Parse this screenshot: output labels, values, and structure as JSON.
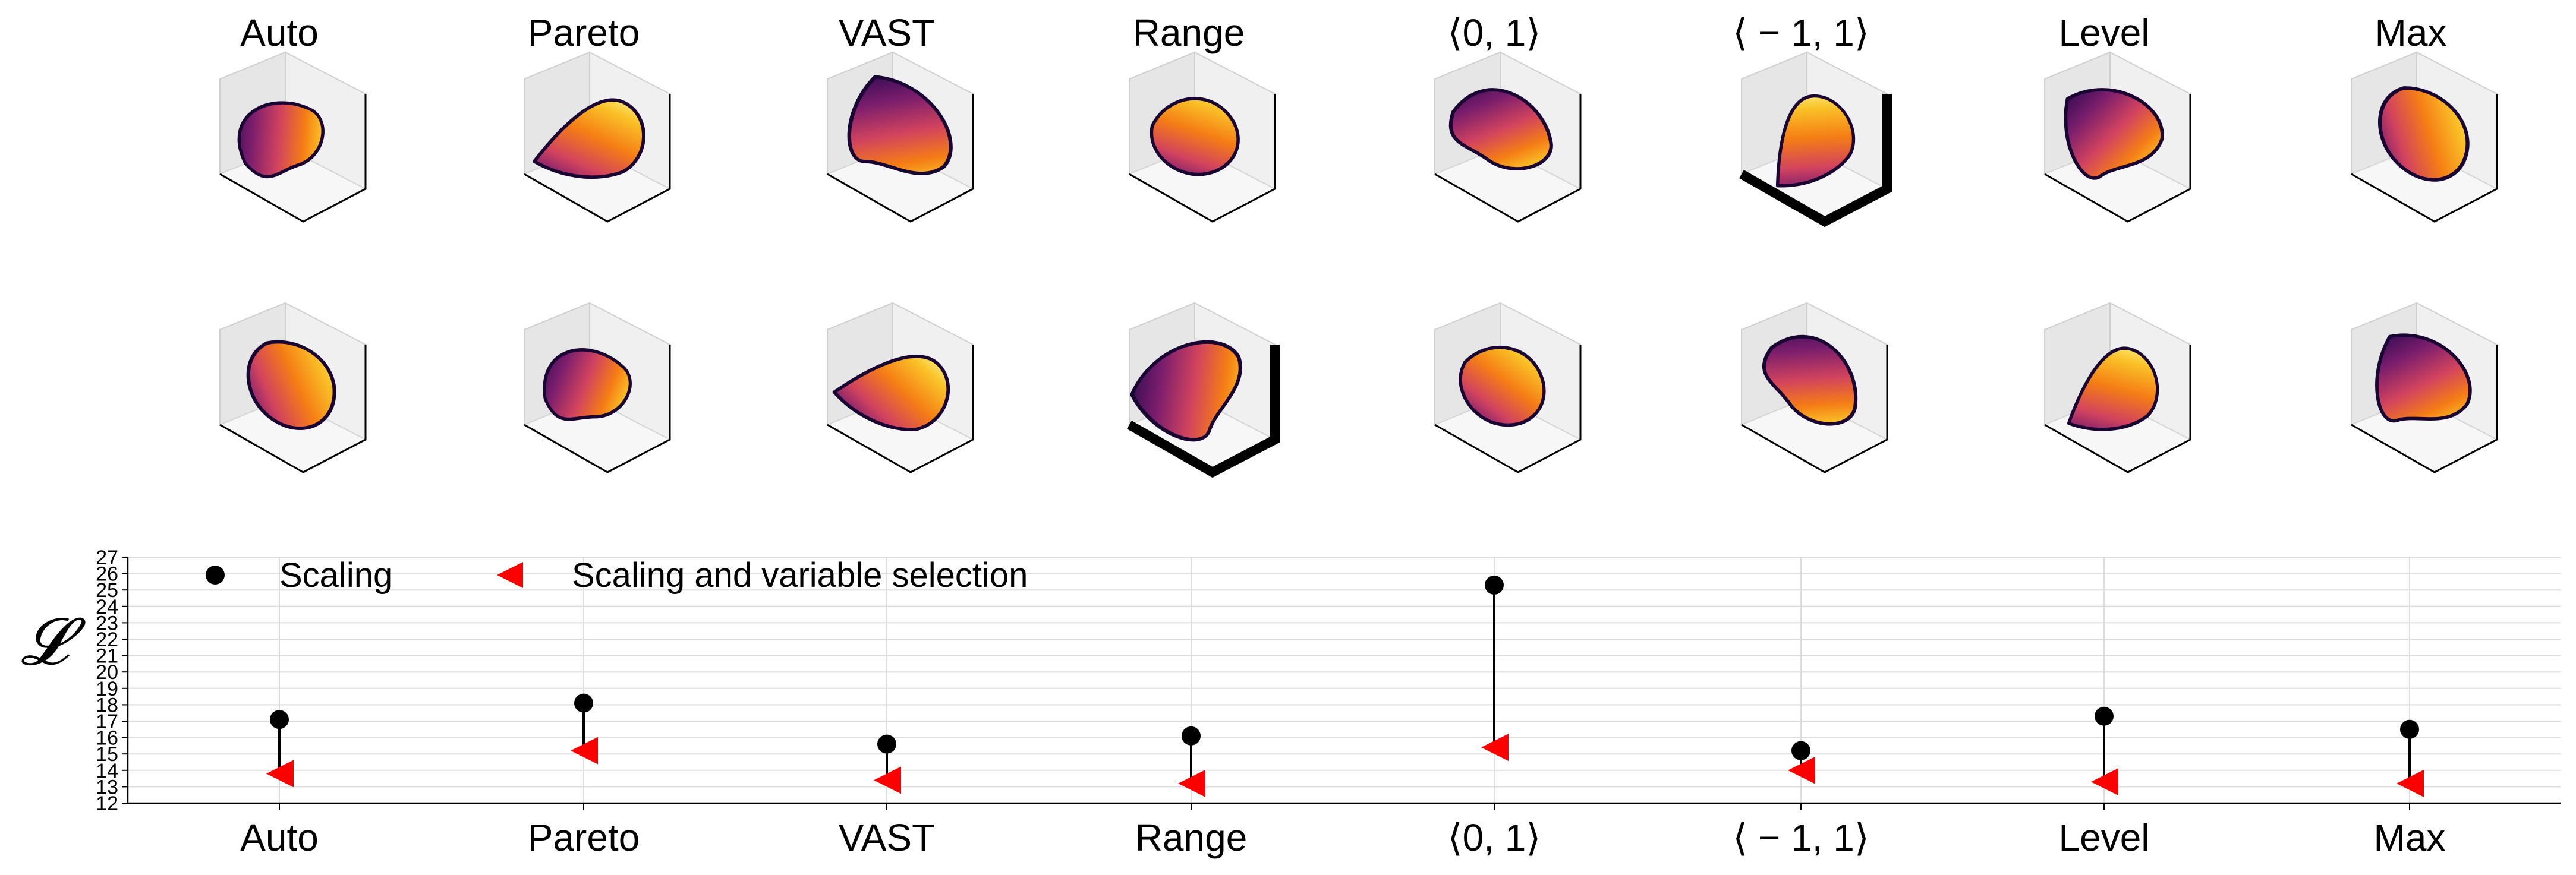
{
  "colors": {
    "scaling": "#000000",
    "scaling_and_selection": "#ff0000",
    "grid": "#dddddd",
    "pane_back": "#f0f0f0",
    "pane_side": "#e6e6e6",
    "pane_floor": "#f7f7f7",
    "surface_colormap": [
      "#2b0a4e",
      "#7a1d6d",
      "#d1435e",
      "#f57d15",
      "#fac228",
      "#fcffa4"
    ]
  },
  "surface_grid": {
    "column_titles": [
      "Auto",
      "Pareto",
      "VAST",
      "Range",
      "⟨0, 1⟩",
      "⟨ − 1, 1⟩",
      "Level",
      "Max"
    ],
    "rows": 2
  },
  "chart_data": {
    "type": "lollipop",
    "ylabel": "𝓛",
    "categories": [
      "Auto",
      "Pareto",
      "VAST",
      "Range",
      "⟨0, 1⟩",
      "⟨ − 1, 1⟩",
      "Level",
      "Max"
    ],
    "ylim": [
      12,
      27
    ],
    "yticks": [
      12,
      13,
      14,
      15,
      16,
      17,
      18,
      19,
      20,
      21,
      22,
      23,
      24,
      25,
      26,
      27
    ],
    "grid": true,
    "legend_position": "top-left",
    "series": [
      {
        "name": "Scaling",
        "marker": "circle",
        "values": [
          17.1,
          18.1,
          15.6,
          16.1,
          25.3,
          15.2,
          17.3,
          16.5
        ]
      },
      {
        "name": "Scaling and variable selection",
        "marker": "left-triangle",
        "values": [
          13.8,
          15.2,
          13.4,
          13.2,
          15.4,
          14.0,
          13.3,
          13.2
        ]
      }
    ]
  }
}
